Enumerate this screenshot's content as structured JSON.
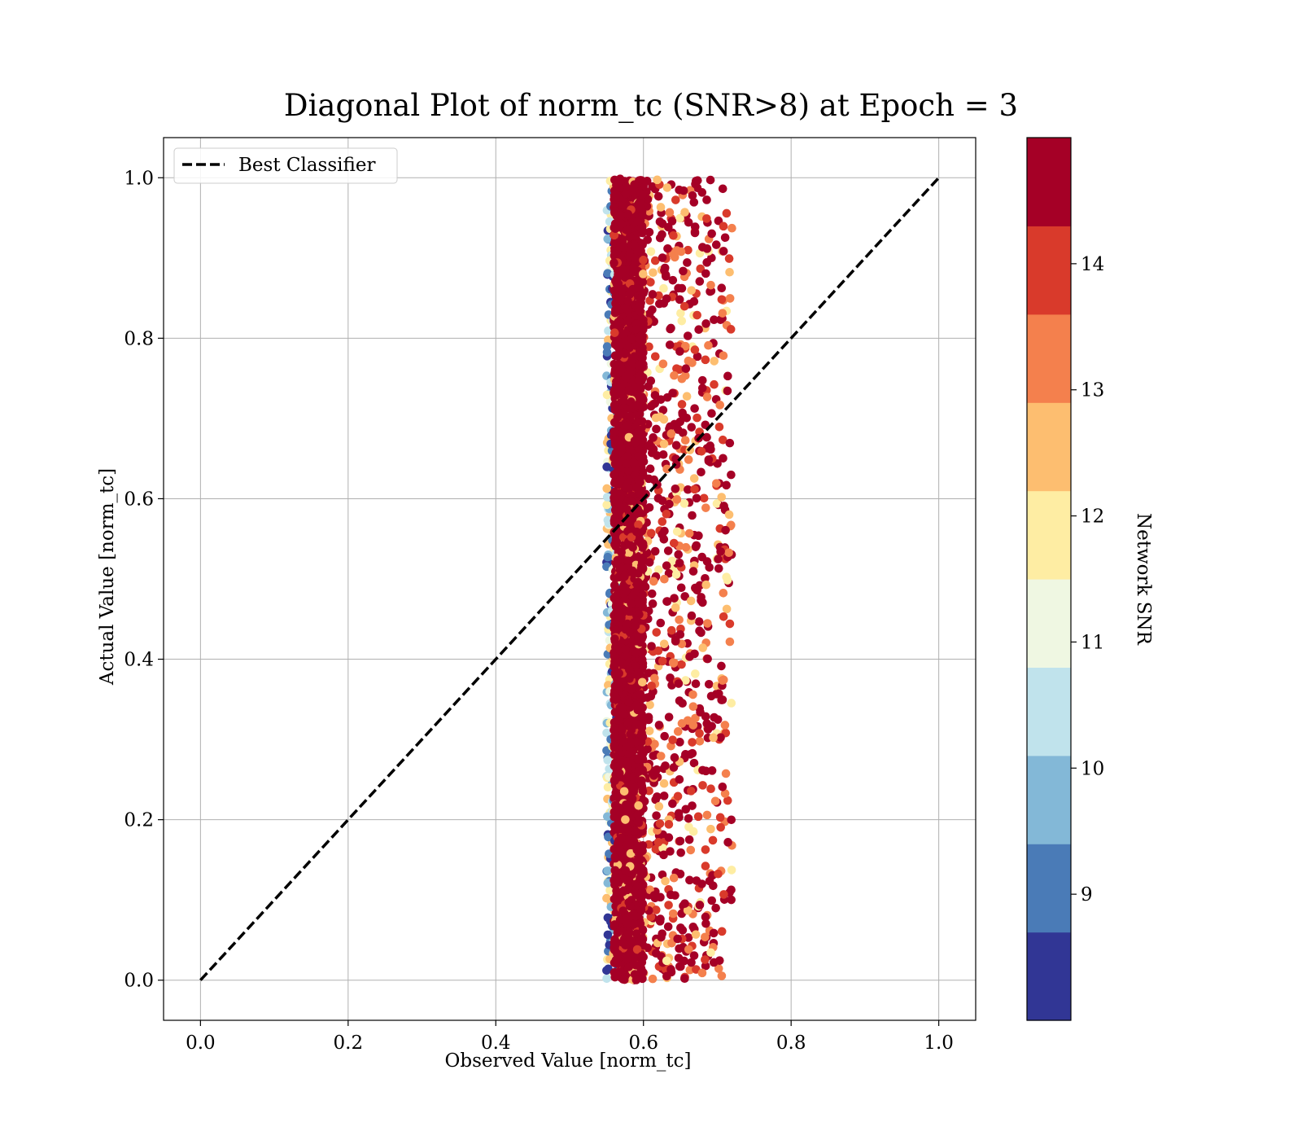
{
  "chart_data": {
    "type": "scatter",
    "title": "Diagonal Plot of norm_tc (SNR>8) at Epoch = 3",
    "xlabel": "Observed Value [norm_tc]",
    "ylabel": "Actual Value [norm_tc]",
    "xlim": [
      -0.05,
      1.05
    ],
    "ylim": [
      -0.05,
      1.05
    ],
    "x_ticks": [
      "0.0",
      "0.2",
      "0.4",
      "0.6",
      "0.8",
      "1.0"
    ],
    "y_ticks": [
      "0.0",
      "0.2",
      "0.4",
      "0.6",
      "0.8",
      "1.0"
    ],
    "grid": true,
    "legend": {
      "position": "top-left",
      "entries": [
        "Best Classifier"
      ]
    },
    "reference_line": {
      "name": "Best Classifier",
      "x": [
        0.0,
        1.0
      ],
      "y": [
        0.0,
        1.0
      ],
      "style": "dashed",
      "color": "#000000"
    },
    "scatter": {
      "x_range": [
        0.55,
        0.72
      ],
      "y_range": [
        0.0,
        1.0
      ],
      "dense_core_x": [
        0.56,
        0.6
      ],
      "color_by": "Network SNR",
      "dominant_color": "#a50026"
    },
    "colorbar": {
      "label": "Network SNR",
      "range": [
        8,
        15
      ],
      "ticks": [
        "9",
        "10",
        "11",
        "12",
        "13",
        "14"
      ],
      "tick_values": [
        9,
        10,
        11,
        12,
        13,
        14
      ],
      "colors": [
        "#313695",
        "#4575b4",
        "#74add1",
        "#abd9e9",
        "#e0f3f8",
        "#ffffbf",
        "#fee090",
        "#fdae61",
        "#f46d43",
        "#d73027",
        "#a50026"
      ],
      "band_colors": [
        "#313695",
        "#4a7bb7",
        "#83b8d7",
        "#c0e3ec",
        "#eff7e2",
        "#feeda3",
        "#fdbe70",
        "#f4804d",
        "#d93a2b",
        "#a50026"
      ]
    }
  }
}
